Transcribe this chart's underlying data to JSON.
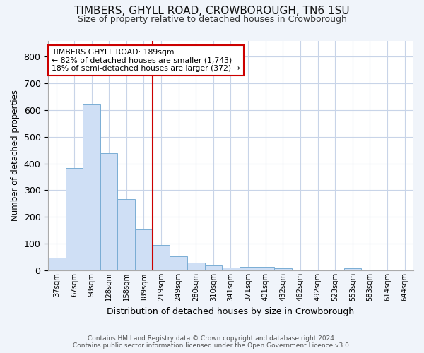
{
  "title": "TIMBERS, GHYLL ROAD, CROWBOROUGH, TN6 1SU",
  "subtitle": "Size of property relative to detached houses in Crowborough",
  "xlabel": "Distribution of detached houses by size in Crowborough",
  "ylabel": "Number of detached properties",
  "footnote1": "Contains HM Land Registry data © Crown copyright and database right 2024.",
  "footnote2": "Contains public sector information licensed under the Open Government Licence v3.0.",
  "categories": [
    "37sqm",
    "67sqm",
    "98sqm",
    "128sqm",
    "158sqm",
    "189sqm",
    "219sqm",
    "249sqm",
    "280sqm",
    "310sqm",
    "341sqm",
    "371sqm",
    "401sqm",
    "432sqm",
    "462sqm",
    "492sqm",
    "523sqm",
    "553sqm",
    "583sqm",
    "614sqm",
    "644sqm"
  ],
  "values": [
    47,
    384,
    621,
    438,
    268,
    154,
    96,
    54,
    29,
    19,
    11,
    12,
    13,
    8,
    0,
    0,
    0,
    8,
    0,
    0,
    0
  ],
  "bar_color": "#cfdff5",
  "bar_edge_color": "#7aadd4",
  "reference_line_index": 5,
  "reference_line_color": "#cc0000",
  "ylim": [
    0,
    860
  ],
  "yticks": [
    0,
    100,
    200,
    300,
    400,
    500,
    600,
    700,
    800
  ],
  "annotation_title": "TIMBERS GHYLL ROAD: 189sqm",
  "annotation_line1": "← 82% of detached houses are smaller (1,743)",
  "annotation_line2": "18% of semi-detached houses are larger (372) →",
  "annotation_box_color": "#ffffff",
  "annotation_box_edge_color": "#cc0000",
  "grid_color": "#c8d4e8",
  "bg_color": "#ffffff",
  "fig_bg_color": "#f0f4fa"
}
